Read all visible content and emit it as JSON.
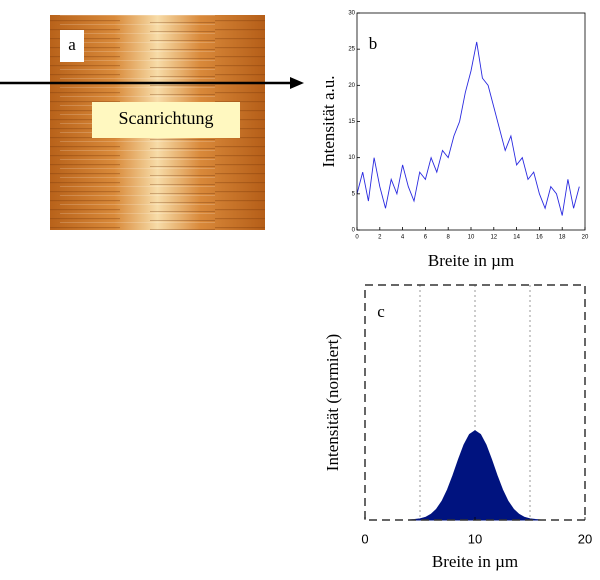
{
  "image": {
    "label": "a",
    "annotation": "Scanrichtung"
  },
  "chart_data": [
    {
      "type": "line",
      "label": "b",
      "y_label": "Intensität a.u.",
      "x_label": "Breite in µm",
      "color": "#2a2ae0",
      "x": [
        0,
        0.5,
        1,
        1.5,
        2,
        2.5,
        3,
        3.5,
        4,
        4.5,
        5,
        5.5,
        6,
        6.5,
        7,
        7.5,
        8,
        8.5,
        9,
        9.5,
        10,
        10.5,
        11,
        11.5,
        12,
        12.5,
        13,
        13.5,
        14,
        14.5,
        15,
        15.5,
        16,
        16.5,
        17,
        17.5,
        18,
        18.5,
        19,
        19.5
      ],
      "values": [
        5,
        8,
        4,
        10,
        6,
        3,
        7,
        5,
        9,
        6,
        4,
        8,
        7,
        10,
        8,
        11,
        10,
        13,
        15,
        19,
        22,
        26,
        21,
        20,
        17,
        14,
        11,
        13,
        9,
        10,
        7,
        8,
        5,
        3,
        6,
        5,
        2,
        7,
        3,
        6
      ],
      "xlim": [
        0,
        20
      ],
      "xticks": [
        0,
        2,
        4,
        6,
        8,
        10,
        12,
        14,
        16,
        18,
        20
      ],
      "ylim": [
        0,
        30
      ],
      "yticks": [
        0,
        5,
        10,
        15,
        20,
        25,
        30
      ]
    },
    {
      "type": "area",
      "label": "c",
      "y_label": "Intensität (normiert)",
      "x_label": "Breite in µm",
      "color": "#00137f",
      "x": [
        4,
        4.5,
        5,
        5.5,
        6,
        6.5,
        7,
        7.5,
        8,
        8.5,
        9,
        9.5,
        10,
        10.5,
        11,
        11.5,
        12,
        12.5,
        13,
        13.5,
        14,
        14.5,
        15,
        15.5,
        16
      ],
      "values": [
        0,
        0.002,
        0.005,
        0.011,
        0.024,
        0.046,
        0.08,
        0.129,
        0.19,
        0.258,
        0.32,
        0.364,
        0.38,
        0.364,
        0.32,
        0.258,
        0.19,
        0.129,
        0.08,
        0.046,
        0.024,
        0.011,
        0.005,
        0.002,
        0
      ],
      "xlim": [
        0,
        20
      ],
      "xticks": [
        0,
        10,
        20
      ],
      "ylim": [
        0,
        1
      ],
      "grid_x": [
        5,
        10,
        15
      ]
    }
  ]
}
